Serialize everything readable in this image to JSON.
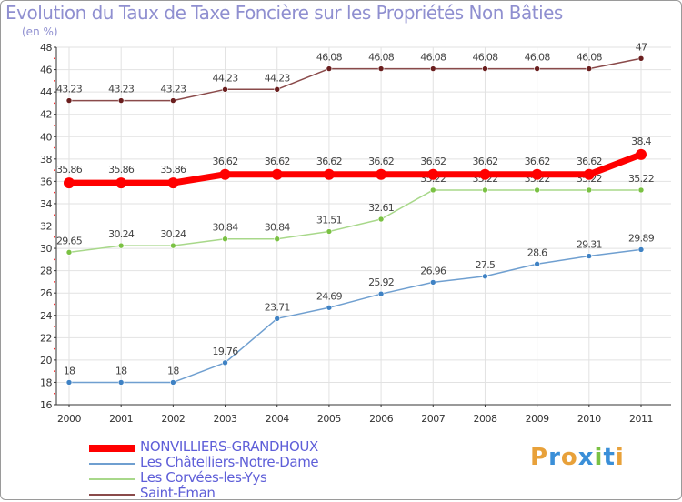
{
  "chart_title": "Evolution du Taux de Taxe Foncière sur les Propriétés Non Bâties",
  "chart_unit": "(en %)",
  "logo": {
    "text": "Proxiti",
    "letters": [
      "P",
      "r",
      "o",
      "x",
      "i",
      "t",
      "i"
    ],
    "colors": [
      "#e8a13a",
      "#3a8fd8",
      "#e8a13a",
      "#3a8fd8",
      "#7ac143",
      "#3a8fd8",
      "#e8a13a"
    ]
  },
  "chart_data": {
    "type": "line",
    "title": "Evolution du Taux de Taxe Foncière sur les Propriétés Non Bâties",
    "ylabel": "(en %)",
    "xlabel": "",
    "x": [
      "2000",
      "2001",
      "2002",
      "2003",
      "2004",
      "2005",
      "2006",
      "2007",
      "2008",
      "2009",
      "2010",
      "2011"
    ],
    "ylim": [
      16,
      48
    ],
    "yticks": [
      16,
      18,
      20,
      22,
      24,
      26,
      28,
      30,
      32,
      34,
      36,
      38,
      40,
      42,
      44,
      46,
      48
    ],
    "grid": true,
    "legend_position": "bottom",
    "series": [
      {
        "name": "NONVILLIERS-GRANDHOUX",
        "color": "#ff0000",
        "marker_color": "#ff0000",
        "emphasis": "thick",
        "values": [
          35.86,
          35.86,
          35.86,
          36.62,
          36.62,
          36.62,
          36.62,
          36.62,
          36.62,
          36.62,
          36.62,
          38.4
        ],
        "labels": [
          "35.86",
          "35.86",
          "35.86",
          "36.62",
          "36.62",
          "36.62",
          "36.62",
          "36.62",
          "36.62",
          "36.62",
          "36.62",
          "38.4"
        ]
      },
      {
        "name": "Les Châtelliers-Notre-Dame",
        "color": "#6f9fd0",
        "marker_color": "#3f82c4",
        "emphasis": "normal",
        "values": [
          18,
          18,
          18,
          19.76,
          23.71,
          24.69,
          25.92,
          26.96,
          27.5,
          28.6,
          29.31,
          29.89
        ],
        "labels": [
          "18",
          "18",
          "18",
          "19.76",
          "23.71",
          "24.69",
          "25.92",
          "26.96",
          "27.5",
          "28.6",
          "29.31",
          "29.89"
        ]
      },
      {
        "name": "Les Corvées-les-Yys",
        "color": "#a8d88a",
        "marker_color": "#7ac143",
        "emphasis": "normal",
        "values": [
          29.65,
          30.24,
          30.24,
          30.84,
          30.84,
          31.51,
          32.61,
          35.22,
          35.22,
          35.22,
          35.22,
          35.22
        ],
        "labels": [
          "29.65",
          "30.24",
          "30.24",
          "30.84",
          "30.84",
          "31.51",
          "32.61",
          "35.22",
          "35.22",
          "35.22",
          "35.22",
          "35.22"
        ]
      },
      {
        "name": "Saint-Éman",
        "color": "#8a4a4a",
        "marker_color": "#6a1e1e",
        "emphasis": "normal",
        "values": [
          43.23,
          43.23,
          43.23,
          44.23,
          44.23,
          46.08,
          46.08,
          46.08,
          46.08,
          46.08,
          46.08,
          47
        ],
        "labels": [
          "43.23",
          "43.23",
          "43.23",
          "44.23",
          "44.23",
          "46.08",
          "46.08",
          "46.08",
          "46.08",
          "46.08",
          "46.08",
          "47"
        ]
      }
    ]
  }
}
